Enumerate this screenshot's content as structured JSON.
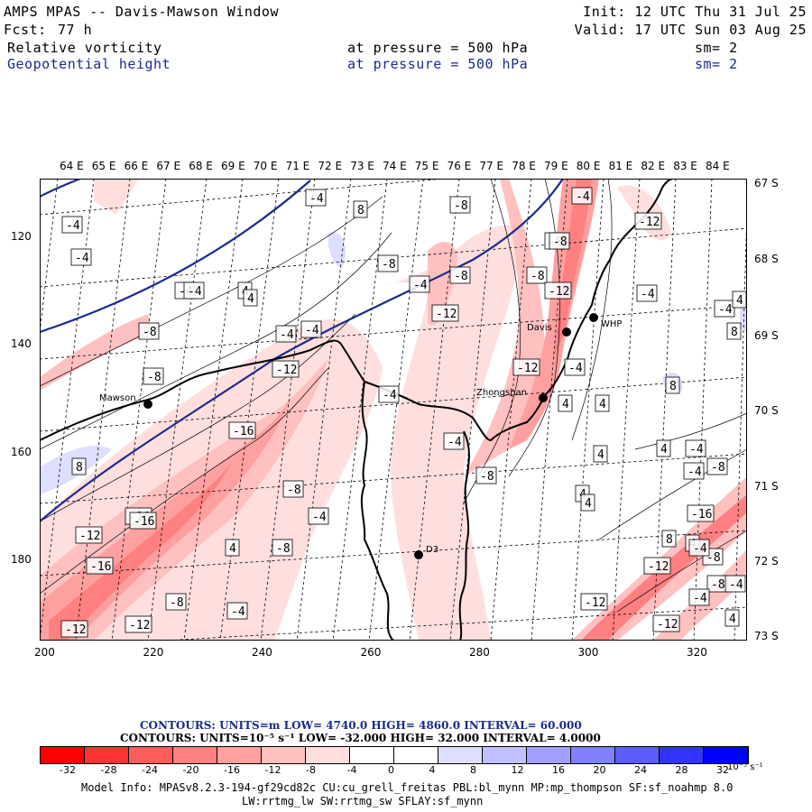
{
  "header": {
    "title": "AMPS MPAS -- Davis-Mawson Window",
    "fcst_label": "Fcst:",
    "fcst_value": "77 h",
    "init": "Init: 12 UTC Thu 31 Jul 25",
    "valid": "Valid: 17 UTC Sun 03 Aug 25",
    "field1": {
      "name": "Relative vorticity",
      "level": "at pressure =  500 hPa",
      "sm": "sm= 2"
    },
    "field2": {
      "name": "Geopotential height",
      "level": "at pressure =  500 hPa",
      "sm": "sm= 2"
    }
  },
  "map": {
    "lon_labels": [
      "64 E",
      "65 E",
      "66 E",
      "67 E",
      "68 E",
      "69 E",
      "70 E",
      "71 E",
      "72 E",
      "73 E",
      "74 E",
      "75 E",
      "76 E",
      "77 E",
      "78 E",
      "79 E",
      "80 E",
      "81 E",
      "82 E",
      "83 E",
      "84 E"
    ],
    "lat_labels": [
      "67 S",
      "68 S",
      "69 S",
      "70 S",
      "71 S",
      "72 S",
      "73 S"
    ],
    "x_ticks": [
      "200",
      "220",
      "240",
      "260",
      "280",
      "300",
      "320"
    ],
    "y_ticks": [
      "120",
      "140",
      "160",
      "180"
    ],
    "stations": [
      {
        "name": "Mawson"
      },
      {
        "name": "Davis"
      },
      {
        "name": "WHP"
      },
      {
        "name": "Zhongshan"
      },
      {
        "name": "D3"
      }
    ],
    "contour_labels": [
      "-4",
      "-4",
      "-4",
      "-8",
      "-4",
      "-4",
      "8",
      "-8",
      "-8",
      "-8",
      "-4",
      "-4",
      "-8",
      "-4",
      "4",
      "-8",
      "-12",
      "-12",
      "-8",
      "-8",
      "-12",
      "-4",
      "4",
      "4",
      "4",
      "8",
      "-4",
      "-8",
      "-12",
      "-4",
      "4",
      "-12",
      "-16",
      "-4",
      "4",
      "8",
      "-16",
      "-8",
      "-8",
      "-8",
      "-4",
      "-12",
      "-16",
      "-4",
      "-4",
      "4",
      "4",
      "4",
      "-4",
      "-16",
      "-12",
      "-8",
      "-4",
      "-4",
      "-12",
      "-12",
      "-12",
      "-8",
      "-4",
      "4",
      "-8",
      "4",
      "-12",
      "-4",
      "-16",
      "8",
      "-4",
      "8",
      "4"
    ],
    "colors": {
      "coast": "#000000",
      "height": "#1a2a8c",
      "neg_strong": "#ff0000",
      "pos_strong": "#0000ff"
    }
  },
  "summary": {
    "line1": "CONTOURS:  UNITS=m  LOW=  4740.0          HIGH=  4860.0          INTERVAL=   60.000",
    "line2": "CONTOURS:  UNITS=10⁻⁵ s⁻¹  LOW=  -32.000          HIGH=  32.000          INTERVAL=   4.0000"
  },
  "colorbar": {
    "colors": [
      "#ff0000",
      "#ff3333",
      "#ff5c5c",
      "#ff8080",
      "#ffa0a0",
      "#ffc0c0",
      "#ffdede",
      "#ffffff",
      "#ffffff",
      "#dedeff",
      "#c0c0ff",
      "#a0a0ff",
      "#8080ff",
      "#5c5cff",
      "#3333ff",
      "#0000ff"
    ],
    "labels": [
      "-32",
      "-28",
      "-24",
      "-20",
      "-16",
      "-12",
      "-8",
      "-4",
      "0",
      "4",
      "8",
      "12",
      "16",
      "20",
      "24",
      "28",
      "32"
    ],
    "unit": "10⁻⁵ s⁻¹"
  },
  "footer": {
    "line1": "Model Info: MPASv8.2.3-194-gf29cd82c CU:cu_grell_freitas PBL:bl_mynn MP:mp_thompson SF:sf_noahmp 8.0",
    "line2": "LW:rrtmg_lw SW:rrtmg_sw SFLAY:sf_mynn"
  }
}
